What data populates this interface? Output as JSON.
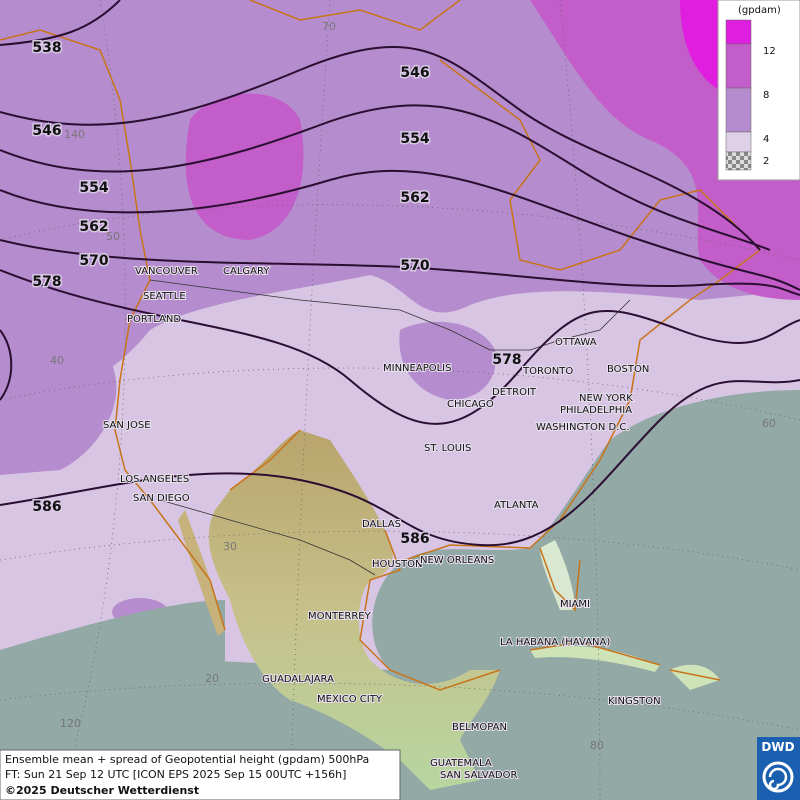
{
  "legend": {
    "unit": "(gpdam)",
    "labels": [
      "12",
      "8",
      "4",
      "2"
    ]
  },
  "contour_labels": [
    "538",
    "546",
    "554",
    "562",
    "570",
    "578",
    "546",
    "554",
    "562",
    "570",
    "578",
    "586",
    "586"
  ],
  "graticule_labels": [
    "70",
    "140",
    "50",
    "40",
    "60",
    "30",
    "20",
    "120",
    "80"
  ],
  "cities": [
    "VANCOUVER",
    "CALGARY",
    "SEATTLE",
    "PORTLAND",
    "MINNEAPOLIS",
    "OTTAWA",
    "TORONTO",
    "BOSTON",
    "DETROIT",
    "CHICAGO",
    "NEW YORK",
    "PHILADELPHIA",
    "WASHINGTON D.C.",
    "SAN JOSE",
    "ST. LOUIS",
    "LOS ANGELES",
    "SAN DIEGO",
    "ATLANTA",
    "DALLAS",
    "HOUSTON",
    "NEW ORLEANS",
    "MIAMI",
    "MONTERREY",
    "LA HABANA (HAVANA)",
    "GUADALAJARA",
    "MEXICO CITY",
    "KINGSTON",
    "BELMOPAN",
    "GUATEMALA",
    "SAN SALVADOR"
  ],
  "footer": {
    "line1": "Ensemble mean + spread of Geopotential height (gpdam) 500hPa",
    "line2": "FT: Sun 21 Sep 12 UTC [ICON EPS 2025 Sep 15 00UTC +156h]",
    "line3": "©2025 Deutscher Wetterdienst"
  },
  "logo": "DWD"
}
